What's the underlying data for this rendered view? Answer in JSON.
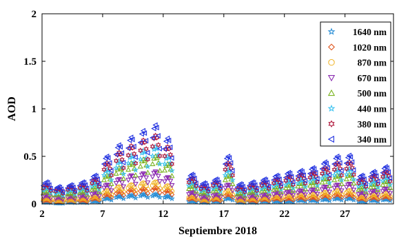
{
  "chart_data": {
    "type": "scatter",
    "title": "",
    "xlabel": "Septiembre 2018",
    "ylabel": "AOD",
    "xlim": [
      2,
      31
    ],
    "ylim": [
      0,
      2
    ],
    "xticks": [
      2,
      7,
      12,
      17,
      22,
      27
    ],
    "yticks": [
      0,
      0.5,
      1,
      1.5,
      2
    ],
    "ytick_labels": [
      "0",
      "0.5",
      "1",
      "1.5",
      "2"
    ],
    "grid": false,
    "legend_position": "top-right",
    "days": [
      2,
      3,
      4,
      5,
      6,
      7,
      8,
      9,
      10,
      11,
      12,
      14,
      15,
      16,
      17,
      18,
      19,
      20,
      21,
      22,
      23,
      24,
      25,
      26,
      27,
      28,
      29,
      30
    ],
    "series": [
      {
        "name": "1640 nm",
        "color": "#2b8fd6",
        "marker": "star",
        "values": [
          0.02,
          0.01,
          0.02,
          0.02,
          0.03,
          0.06,
          0.08,
          0.09,
          0.1,
          0.1,
          0.08,
          0.03,
          0.02,
          0.03,
          0.06,
          0.02,
          0.02,
          0.03,
          0.03,
          0.03,
          0.04,
          0.04,
          0.05,
          0.06,
          0.06,
          0.03,
          0.04,
          0.05
        ]
      },
      {
        "name": "1020 nm",
        "color": "#e0561f",
        "marker": "diamond",
        "values": [
          0.04,
          0.03,
          0.04,
          0.04,
          0.06,
          0.1,
          0.13,
          0.15,
          0.16,
          0.17,
          0.14,
          0.06,
          0.04,
          0.05,
          0.1,
          0.04,
          0.04,
          0.05,
          0.06,
          0.06,
          0.07,
          0.07,
          0.09,
          0.1,
          0.1,
          0.06,
          0.07,
          0.08
        ]
      },
      {
        "name": "870 nm",
        "color": "#f0b323",
        "marker": "circle",
        "values": [
          0.06,
          0.04,
          0.05,
          0.06,
          0.08,
          0.14,
          0.18,
          0.2,
          0.22,
          0.23,
          0.19,
          0.08,
          0.05,
          0.07,
          0.14,
          0.05,
          0.06,
          0.07,
          0.08,
          0.09,
          0.1,
          0.1,
          0.12,
          0.14,
          0.14,
          0.08,
          0.1,
          0.11
        ]
      },
      {
        "name": "670 nm",
        "color": "#8a2bb0",
        "marker": "triangle-down",
        "values": [
          0.09,
          0.07,
          0.08,
          0.09,
          0.12,
          0.2,
          0.26,
          0.3,
          0.32,
          0.34,
          0.28,
          0.12,
          0.08,
          0.1,
          0.2,
          0.08,
          0.09,
          0.1,
          0.12,
          0.13,
          0.14,
          0.15,
          0.18,
          0.2,
          0.21,
          0.12,
          0.14,
          0.16
        ]
      },
      {
        "name": "500 nm",
        "color": "#7ab31f",
        "marker": "triangle-up",
        "values": [
          0.14,
          0.11,
          0.12,
          0.14,
          0.18,
          0.3,
          0.38,
          0.43,
          0.47,
          0.5,
          0.42,
          0.19,
          0.13,
          0.16,
          0.3,
          0.12,
          0.14,
          0.16,
          0.18,
          0.2,
          0.22,
          0.23,
          0.27,
          0.3,
          0.31,
          0.18,
          0.21,
          0.24
        ]
      },
      {
        "name": "440 nm",
        "color": "#3cc3f0",
        "marker": "star",
        "values": [
          0.17,
          0.13,
          0.15,
          0.17,
          0.22,
          0.36,
          0.45,
          0.51,
          0.56,
          0.6,
          0.5,
          0.23,
          0.16,
          0.19,
          0.36,
          0.15,
          0.17,
          0.19,
          0.22,
          0.24,
          0.26,
          0.28,
          0.32,
          0.36,
          0.37,
          0.22,
          0.25,
          0.29
        ]
      },
      {
        "name": "380 nm",
        "color": "#b0183c",
        "marker": "hexagram",
        "values": [
          0.2,
          0.16,
          0.18,
          0.2,
          0.26,
          0.43,
          0.54,
          0.61,
          0.67,
          0.72,
          0.6,
          0.27,
          0.19,
          0.23,
          0.43,
          0.18,
          0.2,
          0.23,
          0.26,
          0.29,
          0.31,
          0.33,
          0.38,
          0.43,
          0.44,
          0.26,
          0.3,
          0.34
        ]
      },
      {
        "name": "340 nm",
        "color": "#1f2fe0",
        "marker": "triangle-left",
        "values": [
          0.23,
          0.18,
          0.2,
          0.23,
          0.3,
          0.5,
          0.62,
          0.7,
          0.77,
          0.83,
          0.69,
          0.31,
          0.22,
          0.26,
          0.5,
          0.21,
          0.23,
          0.26,
          0.3,
          0.33,
          0.35,
          0.38,
          0.44,
          0.5,
          0.51,
          0.3,
          0.34,
          0.39
        ]
      }
    ]
  }
}
